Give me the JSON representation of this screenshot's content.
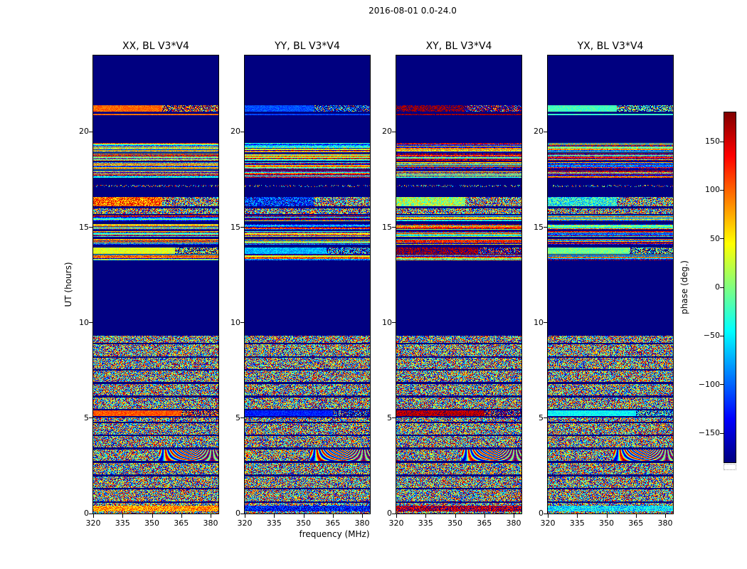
{
  "chart_data": {
    "type": "heatmap",
    "title": "2016-08-01 0.0-24.0",
    "colormap": "jet",
    "flag_color": "#000080",
    "panels": [
      {
        "key": "XX",
        "title": "XX, BL V3*V4",
        "seed": 11
      },
      {
        "key": "YY",
        "title": "YY, BL V3*V4",
        "seed": 22
      },
      {
        "key": "XY",
        "title": "XY, BL V3*V4",
        "seed": 33
      },
      {
        "key": "YX",
        "title": "YX, BL V3*V4",
        "seed": 44
      }
    ],
    "x_axis": {
      "label": "frequency (MHz)",
      "min": 320,
      "max": 384,
      "ticks": [
        {
          "v": 320,
          "label": "320"
        },
        {
          "v": 335,
          "label": "335"
        },
        {
          "v": 350,
          "label": "350"
        },
        {
          "v": 365,
          "label": "365"
        },
        {
          "v": 380,
          "label": "380"
        }
      ]
    },
    "y_axis": {
      "label": "UT (hours)",
      "min": 0,
      "max": 24,
      "ticks": [
        {
          "v": 0,
          "label": "0"
        },
        {
          "v": 5,
          "label": "5"
        },
        {
          "v": 10,
          "label": "10"
        },
        {
          "v": 15,
          "label": "15"
        },
        {
          "v": 20,
          "label": "20"
        }
      ]
    },
    "colorbar": {
      "label": "phase (deg.)",
      "min": -180,
      "max": 180,
      "colormap": "jet",
      "ticks": [
        {
          "v": 150,
          "label": "150"
        },
        {
          "v": 100,
          "label": "100"
        },
        {
          "v": 50,
          "label": "50"
        },
        {
          "v": 0,
          "label": "0"
        },
        {
          "v": -50,
          "label": "−50"
        },
        {
          "v": -100,
          "label": "−100"
        },
        {
          "v": -150,
          "label": "−150"
        }
      ]
    },
    "bands": [
      {
        "from": 0.0,
        "to": 0.12,
        "type": "noise"
      },
      {
        "from": 0.12,
        "to": 0.42,
        "type": "tinted",
        "fraction": 1,
        "spread": 50,
        "values": {
          "XX": 80,
          "YY": -130,
          "XY": 160,
          "YX": -55
        }
      },
      {
        "from": 0.42,
        "to": 0.55,
        "type": "noise"
      },
      {
        "from": 0.55,
        "to": 0.65,
        "type": "flag"
      },
      {
        "from": 0.65,
        "to": 1.25,
        "type": "noise"
      },
      {
        "from": 1.25,
        "to": 1.35,
        "type": "flag"
      },
      {
        "from": 1.35,
        "to": 1.95,
        "type": "noise"
      },
      {
        "from": 1.95,
        "to": 2.05,
        "type": "flag"
      },
      {
        "from": 2.05,
        "to": 2.65,
        "type": "noise"
      },
      {
        "from": 2.65,
        "to": 2.75,
        "type": "flag"
      },
      {
        "from": 2.75,
        "to": 3.35,
        "type": "fringe",
        "fraction": 0.48
      },
      {
        "from": 3.35,
        "to": 3.45,
        "type": "flag"
      },
      {
        "from": 3.45,
        "to": 4.05,
        "type": "noise"
      },
      {
        "from": 4.05,
        "to": 4.15,
        "type": "flag"
      },
      {
        "from": 4.15,
        "to": 4.72,
        "type": "noise"
      },
      {
        "from": 4.72,
        "to": 4.82,
        "type": "flag"
      },
      {
        "from": 4.82,
        "to": 5.02,
        "type": "noise"
      },
      {
        "from": 5.02,
        "to": 5.1,
        "type": "flag"
      },
      {
        "from": 5.1,
        "to": 5.4,
        "type": "smooth",
        "jitter": 22,
        "speckle_right": 0.3,
        "values": {
          "XX": 105,
          "YY": -125,
          "XY": 162,
          "YX": -45
        }
      },
      {
        "from": 5.4,
        "to": 5.48,
        "type": "flag"
      },
      {
        "from": 5.48,
        "to": 6.08,
        "type": "noise"
      },
      {
        "from": 6.08,
        "to": 6.18,
        "type": "flag"
      },
      {
        "from": 6.18,
        "to": 6.78,
        "type": "noise"
      },
      {
        "from": 6.78,
        "to": 6.88,
        "type": "flag"
      },
      {
        "from": 6.88,
        "to": 7.48,
        "type": "noise"
      },
      {
        "from": 7.48,
        "to": 7.56,
        "type": "flag"
      },
      {
        "from": 7.56,
        "to": 8.16,
        "type": "noise"
      },
      {
        "from": 8.16,
        "to": 8.24,
        "type": "flag"
      },
      {
        "from": 8.24,
        "to": 8.86,
        "type": "noise"
      },
      {
        "from": 8.86,
        "to": 8.94,
        "type": "flag"
      },
      {
        "from": 8.94,
        "to": 9.3,
        "type": "noise"
      },
      {
        "from": 9.3,
        "to": 13.25,
        "type": "flag"
      },
      {
        "from": 13.25,
        "to": 13.55,
        "type": "striped"
      },
      {
        "from": 13.55,
        "to": 13.62,
        "type": "flag"
      },
      {
        "from": 13.62,
        "to": 13.95,
        "type": "smooth",
        "jitter": 25,
        "speckle_right": 0.35,
        "values": {
          "XX": 35,
          "YY": -70,
          "XY": 172,
          "YX": -5
        }
      },
      {
        "from": 13.95,
        "to": 14.1,
        "type": "flag"
      },
      {
        "from": 14.1,
        "to": 14.4,
        "type": "striped"
      },
      {
        "from": 14.4,
        "to": 14.48,
        "type": "flag"
      },
      {
        "from": 14.48,
        "to": 14.8,
        "type": "striped"
      },
      {
        "from": 14.8,
        "to": 14.88,
        "type": "flag"
      },
      {
        "from": 14.88,
        "to": 15.15,
        "type": "striped"
      },
      {
        "from": 15.15,
        "to": 15.3,
        "type": "flag"
      },
      {
        "from": 15.3,
        "to": 15.62,
        "type": "striped"
      },
      {
        "from": 15.62,
        "to": 15.7,
        "type": "flag"
      },
      {
        "from": 15.7,
        "to": 16.0,
        "type": "noise"
      },
      {
        "from": 16.0,
        "to": 16.1,
        "type": "flag"
      },
      {
        "from": 16.1,
        "to": 16.6,
        "type": "tinted",
        "fraction": 0.55,
        "spread": 65,
        "values": {
          "XX": 100,
          "YY": -120,
          "XY": 15,
          "YX": -40
        }
      },
      {
        "from": 16.6,
        "to": 17.1,
        "type": "flag"
      },
      {
        "from": 17.1,
        "to": 17.2,
        "type": "sparse",
        "density": 0.3
      },
      {
        "from": 17.2,
        "to": 17.6,
        "type": "flag"
      },
      {
        "from": 17.6,
        "to": 17.95,
        "type": "striped"
      },
      {
        "from": 17.95,
        "to": 18.03,
        "type": "flag"
      },
      {
        "from": 18.03,
        "to": 18.4,
        "type": "striped"
      },
      {
        "from": 18.4,
        "to": 18.48,
        "type": "flag"
      },
      {
        "from": 18.48,
        "to": 18.85,
        "type": "striped"
      },
      {
        "from": 18.85,
        "to": 18.93,
        "type": "flag"
      },
      {
        "from": 18.93,
        "to": 19.4,
        "type": "striped"
      },
      {
        "from": 19.4,
        "to": 20.88,
        "type": "flag"
      },
      {
        "from": 20.88,
        "to": 20.96,
        "type": "smooth",
        "jitter": 12,
        "values": {
          "XX": 98,
          "YY": -112,
          "XY": 170,
          "YX": -25
        }
      },
      {
        "from": 20.96,
        "to": 21.05,
        "type": "flag"
      },
      {
        "from": 21.05,
        "to": 21.38,
        "type": "smooth",
        "jitter": 18,
        "speckle_right": 0.45,
        "values": {
          "XX": 100,
          "YY": -108,
          "XY": 174,
          "YX": -20
        }
      },
      {
        "from": 21.38,
        "to": 24.0,
        "type": "flag"
      }
    ]
  }
}
